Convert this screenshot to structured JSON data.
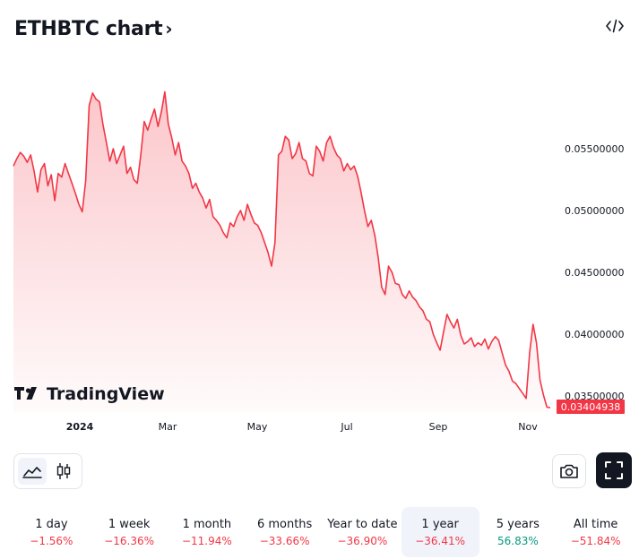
{
  "header": {
    "title": "ETHBTC chart",
    "chevron": "›",
    "embed_icon": "code-embed-icon"
  },
  "chart": {
    "line_color": "#f23645",
    "fill_color": "#f23645",
    "price_ticks": [
      "0.05500000",
      "0.05000000",
      "0.04500000",
      "0.04000000",
      "0.03500000"
    ],
    "current_price": "0.03404938",
    "time_labels": [
      "2024",
      "Mar",
      "May",
      "Jul",
      "Sep",
      "Nov"
    ],
    "watermark": "TradingView",
    "watermark_icon": "tradingview-logo-icon"
  },
  "toolbar": {
    "line_icon": "area-chart-icon",
    "candle_icon": "candlestick-icon",
    "camera_icon": "camera-icon",
    "fullscreen_icon": "fullscreen-icon"
  },
  "periods": [
    {
      "label": "1 day",
      "change": "−1.56%",
      "sign": "neg",
      "active": false
    },
    {
      "label": "1 week",
      "change": "−16.36%",
      "sign": "neg",
      "active": false
    },
    {
      "label": "1 month",
      "change": "−11.94%",
      "sign": "neg",
      "active": false
    },
    {
      "label": "6 months",
      "change": "−33.66%",
      "sign": "neg",
      "active": false
    },
    {
      "label": "Year to date",
      "change": "−36.90%",
      "sign": "neg",
      "active": false
    },
    {
      "label": "1 year",
      "change": "−36.41%",
      "sign": "neg",
      "active": true
    },
    {
      "label": "5 years",
      "change": "56.83%",
      "sign": "pos",
      "active": false
    },
    {
      "label": "All time",
      "change": "−51.84%",
      "sign": "neg",
      "active": false
    }
  ],
  "chart_data": {
    "type": "area",
    "title": "ETHBTC chart",
    "x_tick_labels": [
      "2024",
      "Mar",
      "May",
      "Jul",
      "Sep",
      "Nov"
    ],
    "ylim": [
      0.034,
      0.057
    ],
    "y_ticks": [
      0.055,
      0.05,
      0.045,
      0.04,
      0.035
    ],
    "grid": false,
    "series": [
      {
        "values": [
          0.0536,
          0.0542,
          0.0547,
          0.0544,
          0.0539,
          0.0545,
          0.0532,
          0.0515,
          0.0533,
          0.0538,
          0.052,
          0.0529,
          0.0508,
          0.053,
          0.0527,
          0.0538,
          0.053,
          0.0522,
          0.0514,
          0.0505,
          0.0499,
          0.0524,
          0.0585,
          0.0595,
          0.059,
          0.0588,
          0.057,
          0.0555,
          0.054,
          0.055,
          0.0538,
          0.0545,
          0.0552,
          0.053,
          0.0535,
          0.0525,
          0.0522,
          0.0545,
          0.0572,
          0.0565,
          0.0574,
          0.0582,
          0.0568,
          0.058,
          0.0596,
          0.057,
          0.0559,
          0.0545,
          0.0555,
          0.054,
          0.0536,
          0.053,
          0.0518,
          0.0522,
          0.0515,
          0.051,
          0.0502,
          0.0509,
          0.0495,
          0.0492,
          0.0488,
          0.0482,
          0.0478,
          0.049,
          0.0487,
          0.0495,
          0.05,
          0.0492,
          0.0505,
          0.0497,
          0.049,
          0.0488,
          0.0482,
          0.0474,
          0.0466,
          0.0455,
          0.0474,
          0.0545,
          0.0548,
          0.056,
          0.0557,
          0.0542,
          0.0546,
          0.0555,
          0.0542,
          0.054,
          0.053,
          0.0528,
          0.0552,
          0.0548,
          0.054,
          0.0555,
          0.056,
          0.0551,
          0.0545,
          0.0542,
          0.0532,
          0.0538,
          0.0533,
          0.0536,
          0.0528,
          0.0515,
          0.05,
          0.0487,
          0.0492,
          0.048,
          0.0462,
          0.0438,
          0.0432,
          0.0455,
          0.045,
          0.0441,
          0.044,
          0.0432,
          0.0429,
          0.0435,
          0.043,
          0.0427,
          0.0422,
          0.0419,
          0.0412,
          0.041,
          0.04,
          0.0393,
          0.0387,
          0.0402,
          0.0416,
          0.041,
          0.0405,
          0.0412,
          0.0399,
          0.0392,
          0.0394,
          0.0397,
          0.039,
          0.0393,
          0.0391,
          0.0396,
          0.0388,
          0.0394,
          0.0398,
          0.0395,
          0.0385,
          0.0375,
          0.037,
          0.0362,
          0.036,
          0.0356,
          0.0352,
          0.0348,
          0.0385,
          0.0408,
          0.0393,
          0.0363,
          0.0351,
          0.0341,
          0.03405
        ]
      }
    ]
  }
}
